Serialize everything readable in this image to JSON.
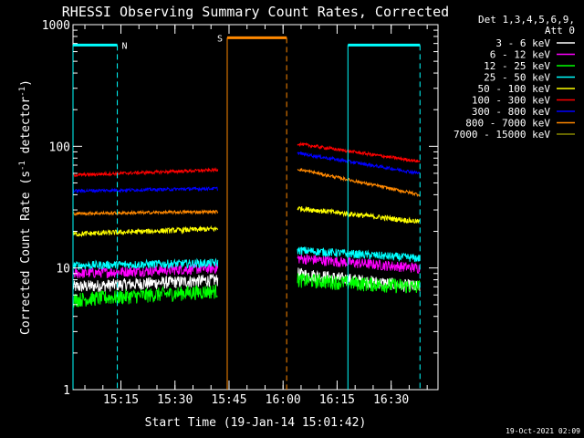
{
  "chart_data": {
    "type": "line",
    "title": "RHESSI Observing Summary Count Rates, Corrected",
    "xlabel": "Start Time (19-Jan-14 15:01:42)",
    "ylabel_main": "Corrected Count Rate (s",
    "ylabel_sup1": "-1",
    "ylabel_mid": " detector",
    "ylabel_sup2": "-1",
    "ylabel_end": ")",
    "y_scale": "log",
    "ylim": [
      1,
      1000
    ],
    "xlim": [
      "15:01:42",
      "16:43:00"
    ],
    "x_ticks": [
      "15:15",
      "15:30",
      "15:45",
      "16:00",
      "16:15",
      "16:30"
    ],
    "y_ticks": [
      "1",
      "10",
      "100",
      "1000"
    ],
    "footer_date": "19-Oct-2021 02:09",
    "legend": {
      "header1": "Det 1,3,4,5,6,9,",
      "header2": "Att 0",
      "placement": "top-right-outside"
    },
    "series": [
      {
        "name": "3 - 6 keV",
        "color": "#ffffff",
        "segments": [
          {
            "start": "15:01:42",
            "end": "15:42:00",
            "v0": 7,
            "v1": 8,
            "noise": 0.12
          },
          {
            "start": "16:04:00",
            "end": "16:38:00",
            "v0": 9,
            "v1": 7,
            "noise": 0.12
          }
        ]
      },
      {
        "name": "6 - 12 keV",
        "color": "#ff00ff",
        "segments": [
          {
            "start": "15:01:42",
            "end": "15:42:00",
            "v0": 9,
            "v1": 10,
            "noise": 0.1
          },
          {
            "start": "16:04:00",
            "end": "16:38:00",
            "v0": 12,
            "v1": 10,
            "noise": 0.1
          }
        ]
      },
      {
        "name": "12 - 25 keV",
        "color": "#00ff00",
        "segments": [
          {
            "start": "15:01:42",
            "end": "15:42:00",
            "v0": 5.5,
            "v1": 6.5,
            "noise": 0.14
          },
          {
            "start": "16:04:00",
            "end": "16:38:00",
            "v0": 8,
            "v1": 7,
            "noise": 0.14
          }
        ]
      },
      {
        "name": "25 - 50 keV",
        "color": "#00ffff",
        "segments": [
          {
            "start": "15:01:42",
            "end": "15:42:00",
            "v0": 10.5,
            "v1": 11,
            "noise": 0.08
          },
          {
            "start": "16:04:00",
            "end": "16:38:00",
            "v0": 14,
            "v1": 12,
            "noise": 0.08
          }
        ]
      },
      {
        "name": "50 - 100 keV",
        "color": "#ffff00",
        "segments": [
          {
            "start": "15:01:42",
            "end": "15:42:00",
            "v0": 19,
            "v1": 21,
            "noise": 0.05
          },
          {
            "start": "16:04:00",
            "end": "16:38:00",
            "v0": 31,
            "v1": 24,
            "noise": 0.05
          }
        ]
      },
      {
        "name": "100 - 300 keV",
        "color": "#ff0000",
        "segments": [
          {
            "start": "15:01:42",
            "end": "15:42:00",
            "v0": 58,
            "v1": 64,
            "noise": 0.03
          },
          {
            "start": "16:04:00",
            "end": "16:38:00",
            "v0": 105,
            "v1": 75,
            "noise": 0.03
          }
        ]
      },
      {
        "name": "300 - 800 keV",
        "color": "#0000ff",
        "segments": [
          {
            "start": "15:01:42",
            "end": "15:42:00",
            "v0": 43,
            "v1": 45,
            "noise": 0.03
          },
          {
            "start": "16:04:00",
            "end": "16:38:00",
            "v0": 88,
            "v1": 60,
            "noise": 0.03
          }
        ]
      },
      {
        "name": "800 - 7000 keV",
        "color": "#ff8800",
        "segments": [
          {
            "start": "15:01:42",
            "end": "15:42:00",
            "v0": 28,
            "v1": 29,
            "noise": 0.03
          },
          {
            "start": "16:04:00",
            "end": "16:38:00",
            "v0": 65,
            "v1": 40,
            "noise": 0.03
          }
        ]
      },
      {
        "name": "7000 - 15000 keV",
        "color": "#888800",
        "segments": []
      }
    ],
    "annotations": [
      {
        "label": "N",
        "type": "night",
        "color": "#00ffff",
        "start": "15:01:42",
        "end": "15:14:00",
        "y_value": 680
      },
      {
        "label": "",
        "type": "night",
        "color": "#00ffff",
        "start": "16:18:00",
        "end": "16:38:00",
        "y_value": 680
      },
      {
        "label": "S",
        "type": "saa",
        "color": "#ff8800",
        "start": "15:44:30",
        "end": "16:01:00",
        "y_value": 780
      }
    ]
  }
}
